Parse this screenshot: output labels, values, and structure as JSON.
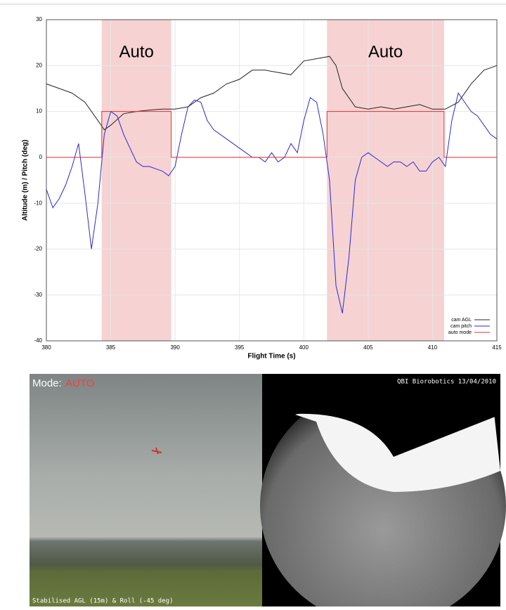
{
  "chart_data": {
    "type": "line",
    "xlabel": "Flight Time (s)",
    "ylabel": "Altitude (m) / Pitch (deg)",
    "xlim": [
      380,
      415
    ],
    "xticks": [
      380,
      385,
      390,
      395,
      400,
      405,
      410,
      415
    ],
    "ylim": [
      -40,
      30
    ],
    "yticks": [
      -40,
      -30,
      -20,
      -10,
      0,
      10,
      20,
      30
    ],
    "grid": true,
    "legend": "lower right",
    "shaded_regions": [
      {
        "start": 384.3,
        "end": 389.7,
        "label": "Auto",
        "color": "#f6d2d2"
      },
      {
        "start": 401.8,
        "end": 410.9,
        "label": "Auto",
        "color": "#f6d2d2"
      }
    ],
    "series": [
      {
        "name": "cam AGL",
        "color": "#222222",
        "x": [
          380,
          381,
          382,
          383,
          384,
          384.5,
          385,
          386,
          387,
          388,
          389,
          390,
          391,
          392,
          393,
          394,
          395,
          396,
          397,
          398,
          399,
          400,
          401,
          402,
          402.5,
          403,
          404,
          405,
          406,
          407,
          408,
          409,
          410,
          411,
          412,
          413,
          414,
          415
        ],
        "values": [
          16,
          15,
          14,
          12,
          8,
          6,
          7,
          9.5,
          10,
          10.3,
          10.5,
          10.5,
          11,
          13,
          14,
          16,
          17,
          19,
          19,
          18.5,
          18,
          21,
          21.5,
          22,
          20,
          15,
          11,
          10.5,
          11,
          10.5,
          11,
          11.5,
          10.5,
          10.5,
          12,
          16,
          19,
          20
        ]
      },
      {
        "name": "cam pitch",
        "color": "#2a2ad6",
        "x": [
          380,
          380.5,
          381,
          381.5,
          382,
          382.5,
          383,
          383.5,
          384,
          384.5,
          385,
          385.5,
          386,
          386.5,
          387,
          387.5,
          388,
          388.5,
          389,
          389.5,
          390,
          390.5,
          391,
          391.5,
          392,
          392.5,
          393,
          393.5,
          394,
          394.5,
          395,
          395.5,
          396,
          396.5,
          397,
          397.5,
          398,
          398.5,
          399,
          399.5,
          400,
          400.5,
          401,
          401.5,
          402,
          402.5,
          403,
          403.5,
          404,
          404.5,
          405,
          405.5,
          406,
          406.5,
          407,
          407.5,
          408,
          408.5,
          409,
          409.5,
          410,
          410.5,
          411,
          411.5,
          412,
          412.5,
          413,
          413.5,
          414,
          414.5,
          415
        ],
        "values": [
          -7,
          -11,
          -9,
          -6,
          -2,
          3,
          -8,
          -20,
          -10,
          5,
          10,
          9,
          5,
          2,
          -1,
          -2,
          -2,
          -2.5,
          -3,
          -4,
          -2,
          5,
          11,
          12.5,
          12,
          8,
          6,
          5,
          4,
          3,
          2,
          1,
          0,
          0,
          -1,
          1,
          -1,
          0,
          3,
          1,
          8,
          13,
          12,
          5,
          -5,
          -28,
          -34,
          -22,
          -5,
          0,
          1,
          0,
          -1,
          -2,
          -1,
          -1,
          -2,
          -1,
          -3,
          -3,
          -1,
          0,
          -2,
          8,
          14,
          12,
          10,
          9,
          7,
          5,
          4
        ]
      },
      {
        "name": "auto mode",
        "color": "#e03030",
        "x": [
          380,
          384.3,
          384.3,
          389.7,
          389.7,
          401.8,
          401.8,
          410.9,
          410.9,
          415
        ],
        "values": [
          0,
          0,
          10,
          10,
          0,
          0,
          10,
          10,
          0,
          0
        ]
      }
    ]
  },
  "video": {
    "mode_label": "Mode:",
    "mode_value": "AUTO",
    "stamp": "QBI Biorobotics 13/04/2010",
    "caption": "Stabilised AGL (15m) & Roll (-45 deg)"
  }
}
